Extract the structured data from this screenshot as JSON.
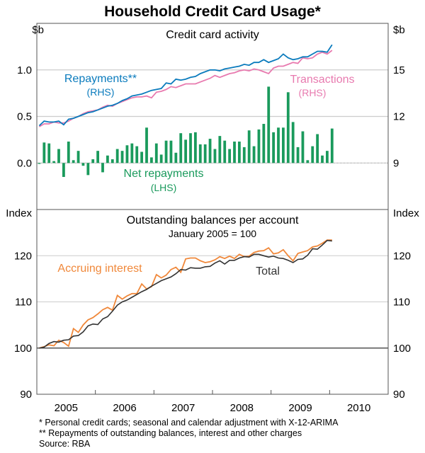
{
  "chart_data": [
    {
      "type": "bar+line",
      "title": "Household Credit Card Usage*",
      "panel_title": "Credit card activity",
      "left_unit": "$b",
      "right_unit": "$b",
      "ylim_left": [
        -0.5,
        1.5
      ],
      "ylim_right": [
        6,
        18
      ],
      "left_ticks": [
        "0.0",
        "0.5",
        "1.0"
      ],
      "left_tick_values": [
        0,
        0.5,
        1.0
      ],
      "right_ticks": [
        "9",
        "12",
        "15"
      ],
      "right_tick_values": [
        9,
        12,
        15
      ],
      "x_start": "Jan 2005",
      "frequency": "monthly",
      "series": [
        {
          "name": "Repayments**",
          "axis_label": "(RHS)",
          "axis": "right",
          "kind": "line",
          "color": "#0a7bbd",
          "values": [
            11.4,
            11.7,
            11.64,
            11.64,
            11.7,
            11.46,
            11.82,
            11.88,
            12.0,
            12.12,
            12.24,
            12.3,
            12.42,
            12.54,
            12.66,
            12.72,
            12.84,
            13.02,
            13.14,
            13.32,
            13.38,
            13.44,
            13.56,
            13.68,
            13.74,
            13.8,
            14.16,
            14.1,
            14.4,
            14.34,
            14.4,
            14.52,
            14.58,
            14.76,
            14.88,
            15.0,
            15.0,
            14.94,
            15.06,
            15.12,
            15.18,
            15.24,
            15.36,
            15.3,
            15.48,
            15.48,
            15.66,
            15.48,
            15.6,
            15.72,
            16.02,
            15.78,
            15.66,
            15.72,
            15.84,
            15.84,
            16.02,
            16.2,
            16.2,
            16.14,
            16.62
          ]
        },
        {
          "name": "Transactions",
          "axis_label": "(RHS)",
          "axis": "right",
          "kind": "line",
          "color": "#e87aaf",
          "values": [
            11.34,
            11.52,
            11.52,
            11.64,
            11.58,
            11.58,
            11.7,
            11.88,
            12.0,
            12.18,
            12.3,
            12.36,
            12.42,
            12.6,
            12.72,
            12.66,
            12.84,
            12.96,
            13.08,
            13.2,
            13.26,
            13.26,
            13.32,
            13.2,
            13.56,
            13.62,
            13.74,
            13.92,
            13.86,
            13.98,
            14.1,
            14.1,
            14.1,
            14.22,
            14.34,
            14.46,
            14.64,
            14.52,
            14.64,
            14.76,
            14.82,
            14.94,
            15.0,
            14.94,
            15.06,
            15.0,
            14.88,
            14.76,
            15.12,
            15.24,
            15.24,
            15.36,
            15.48,
            15.42,
            15.78,
            15.72,
            15.78,
            16.02,
            16.14,
            16.02,
            16.26
          ]
        },
        {
          "name": "Net repayments",
          "axis_label": "(LHS)",
          "axis": "left",
          "kind": "bar",
          "color": "#1a9a5c",
          "values": [
            -0.01,
            0.22,
            0.21,
            0.02,
            0.15,
            -0.15,
            0.23,
            0.03,
            0.13,
            -0.03,
            -0.13,
            0.04,
            0.13,
            -0.1,
            0.08,
            0.04,
            0.15,
            0.13,
            0.19,
            0.21,
            0.18,
            0.12,
            0.38,
            0.06,
            0.21,
            0.09,
            0.24,
            0.24,
            0.11,
            0.32,
            0.25,
            0.32,
            0.33,
            0.2,
            0.2,
            0.26,
            0.15,
            0.29,
            0.24,
            0.15,
            0.23,
            0.23,
            0.17,
            0.35,
            0.18,
            0.36,
            0.42,
            0.82,
            0.33,
            0.38,
            0.38,
            0.76,
            0.44,
            0.17,
            0.34,
            0.03,
            0.18,
            0.31,
            0.08,
            0.13,
            0.37
          ]
        }
      ]
    },
    {
      "type": "line",
      "panel_title": "Outstanding balances per account",
      "subtitle": "January 2005 = 100",
      "left_unit": "Index",
      "right_unit": "Index",
      "ylim": [
        90,
        130
      ],
      "ticks": [
        "90",
        "100",
        "110",
        "120"
      ],
      "tick_values": [
        90,
        100,
        110,
        120
      ],
      "x_start": "Jan 2005",
      "frequency": "monthly",
      "series": [
        {
          "name": "Accruing interest",
          "color": "#f0883a",
          "values": [
            100,
            100.3,
            100.7,
            100.5,
            101.7,
            101.2,
            100.4,
            104.2,
            103.4,
            105.0,
            106.1,
            106.6,
            107.4,
            108.3,
            108.8,
            108.2,
            111.4,
            110.6,
            111.3,
            111.8,
            111.8,
            113.9,
            112.8,
            113.3,
            115.9,
            115.2,
            115.8,
            117.0,
            117.5,
            116.4,
            119.3,
            119.5,
            119.5,
            118.9,
            118.5,
            118.7,
            119.1,
            119.8,
            119.4,
            119.9,
            119.4,
            120.3,
            119.8,
            119.9,
            120.7,
            121.0,
            121.1,
            121.7,
            120.4,
            120.6,
            121.3,
            120.0,
            118.9,
            120.5,
            120.8,
            121.1,
            121.9,
            122.1,
            122.7,
            123.4,
            123.4
          ]
        },
        {
          "name": "Total",
          "color": "#333333",
          "values": [
            100,
            100.2,
            101,
            101.4,
            101.3,
            101.7,
            101.8,
            102.6,
            102.7,
            103.5,
            104.8,
            105.2,
            105.1,
            106.3,
            106.8,
            108.0,
            109.3,
            110.0,
            110.4,
            111.0,
            111.6,
            112.2,
            112.7,
            113.4,
            114.0,
            114.6,
            115.0,
            115.4,
            116.1,
            117.0,
            116.9,
            117.4,
            117.3,
            117.3,
            117.6,
            117.7,
            118.4,
            118.9,
            118.2,
            119.0,
            119.0,
            119.5,
            119.8,
            119.7,
            120.3,
            120.3,
            120.0,
            119.7,
            119.9,
            119.5,
            119.4,
            119.0,
            118.5,
            119.2,
            119.3,
            120.1,
            121.5,
            121.4,
            122.3,
            123.3,
            123.2
          ]
        }
      ]
    }
  ],
  "x_axis": {
    "labels": [
      "2005",
      "2006",
      "2007",
      "2008",
      "2009",
      "2010"
    ]
  },
  "footnotes": [
    "*   Personal credit cards; seasonal and calendar adjustment with X-12-ARIMA",
    "** Repayments of outstanding balances, interest and other charges",
    "Source: RBA"
  ]
}
